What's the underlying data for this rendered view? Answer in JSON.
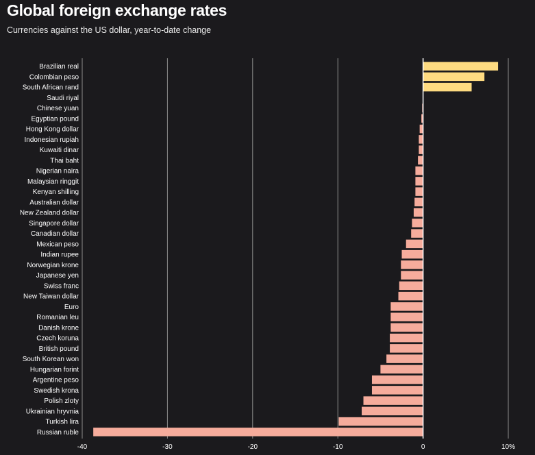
{
  "chart_data": {
    "type": "bar",
    "orientation": "horizontal",
    "title": "Global foreign exchange rates",
    "subtitle": "Currencies against the US dollar, year-to-date change",
    "xlabel": "",
    "ylabel": "",
    "xlim": [
      -40,
      10
    ],
    "x_ticks": [
      {
        "value": -40,
        "label": "-40"
      },
      {
        "value": -30,
        "label": "-30"
      },
      {
        "value": -20,
        "label": "-20"
      },
      {
        "value": -10,
        "label": "-10"
      },
      {
        "value": 0,
        "label": "0"
      },
      {
        "value": 10,
        "label": "10%"
      }
    ],
    "grid": true,
    "colors": {
      "positive": "#fedb81",
      "negative": "#f6ac9c",
      "grid": "#8c8c8c",
      "zero_line": "#ffffff",
      "background": "#1b1a1d"
    },
    "categories": [
      "Brazilian real",
      "Colombian peso",
      "South African rand",
      "Saudi riyal",
      "Chinese yuan",
      "Egyptian pound",
      "Hong Kong dollar",
      "Indonesian rupiah",
      "Kuwaiti dinar",
      "Thai baht",
      "Nigerian naira",
      "Malaysian ringgit",
      "Kenyan shilling",
      "Australian dollar",
      "New Zealand dollar",
      "Singapore dollar",
      "Canadian dollar",
      "Mexican peso",
      "Indian rupee",
      "Norwegian krone",
      "Japanese yen",
      "Swiss franc",
      "New Taiwan dollar",
      "Euro",
      "Romanian leu",
      "Danish krone",
      "Czech koruna",
      "British pound",
      "South Korean won",
      "Hungarian forint",
      "Argentine peso",
      "Swedish krona",
      "Polish zloty",
      "Ukrainian hryvnia",
      "Turkish lira",
      "Russian ruble"
    ],
    "values": [
      8.8,
      7.2,
      5.7,
      0.0,
      -0.1,
      -0.2,
      -0.4,
      -0.5,
      -0.5,
      -0.6,
      -0.9,
      -0.9,
      -0.9,
      -1.0,
      -1.1,
      -1.3,
      -1.4,
      -2.0,
      -2.5,
      -2.6,
      -2.6,
      -2.8,
      -2.9,
      -3.8,
      -3.8,
      -3.8,
      -3.9,
      -3.9,
      -4.3,
      -5.0,
      -6.0,
      -6.0,
      -7.0,
      -7.2,
      -9.9,
      -38.7
    ]
  }
}
